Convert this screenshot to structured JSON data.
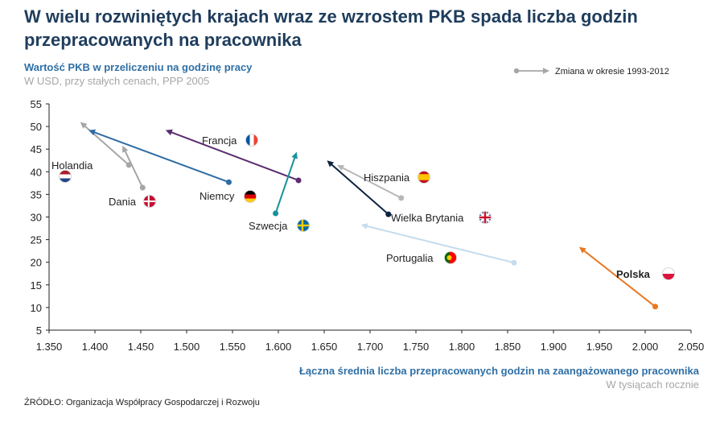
{
  "title": "W wielu rozwiniętych krajach wraz ze wzrostem PKB spada liczba godzin przepracowanych na pracownika",
  "subtitle": "Wartość PKB w przeliczeniu na godzinę pracy",
  "subtitle_units": "W USD, przy stałych cenach, PPP 2005",
  "legend_label": "Zmiana w okresie 1993-2012",
  "source": "ŹRÓDŁO: Organizacja Współpracy Gospodarczej i Rozwoju",
  "chart_data": {
    "type": "scatter",
    "title": "Wartość PKB w przeliczeniu na godzinę pracy",
    "xlabel": "Łączna średnia liczba przepracowanych godzin na zaangażowanego pracownika",
    "xlabel_units": "W tysiącach rocznie",
    "ylabel": "W USD, przy stałych cenach, PPP 2005",
    "xlim": [
      1.35,
      2.05
    ],
    "ylim": [
      5,
      55
    ],
    "x_ticks": [
      "1.350",
      "1.400",
      "1.450",
      "1.500",
      "1.550",
      "1.600",
      "1.650",
      "1.700",
      "1.750",
      "1.800",
      "1.850",
      "1.900",
      "1.950",
      "2.000",
      "2.050"
    ],
    "y_ticks": [
      "5",
      "10",
      "15",
      "20",
      "25",
      "30",
      "35",
      "40",
      "45",
      "50",
      "55"
    ],
    "grid": false,
    "legend_position": "top-right",
    "series": [
      {
        "name": "Holandia",
        "color": "#a6a6a6",
        "start": [
          1.437,
          41.5
        ],
        "end": [
          1.384,
          51.0
        ],
        "label_color": "#222222",
        "flag": "nl"
      },
      {
        "name": "Dania",
        "color": "#a6a6a6",
        "start": [
          1.452,
          36.5
        ],
        "end": [
          1.43,
          45.8
        ],
        "label_color": "#222222",
        "flag": "dk"
      },
      {
        "name": "Niemcy",
        "color": "#2e6ca4",
        "start": [
          1.546,
          37.7
        ],
        "end": [
          1.393,
          49.2
        ],
        "label_color": "#222222",
        "flag": "de"
      },
      {
        "name": "Francja",
        "color": "#5b2c6f",
        "start": [
          1.622,
          38.1
        ],
        "end": [
          1.477,
          49.2
        ],
        "label_color": "#222222",
        "flag": "fr"
      },
      {
        "name": "Szwecja",
        "color": "#17929b",
        "start": [
          1.597,
          30.8
        ],
        "end": [
          1.62,
          44.4
        ],
        "label_color": "#222222",
        "flag": "se"
      },
      {
        "name": "Hiszpania",
        "color": "#b7b7b7",
        "start": [
          1.734,
          34.2
        ],
        "end": [
          1.664,
          41.5
        ],
        "label_color": "#222222",
        "flag": "es"
      },
      {
        "name": "Wielka Brytania",
        "color": "#0d2340",
        "start": [
          1.72,
          30.6
        ],
        "end": [
          1.653,
          42.5
        ],
        "label_color": "#222222",
        "flag": "gb"
      },
      {
        "name": "Portugalia",
        "color": "#c5dced",
        "start": [
          1.857,
          19.9
        ],
        "end": [
          1.69,
          28.3
        ],
        "label_color": "#222222",
        "flag": "pt"
      },
      {
        "name": "Polska",
        "color": "#e87722",
        "start": [
          2.011,
          10.2
        ],
        "end": [
          1.928,
          23.4
        ],
        "label_color": "#e87722",
        "flag": "pl"
      }
    ]
  }
}
